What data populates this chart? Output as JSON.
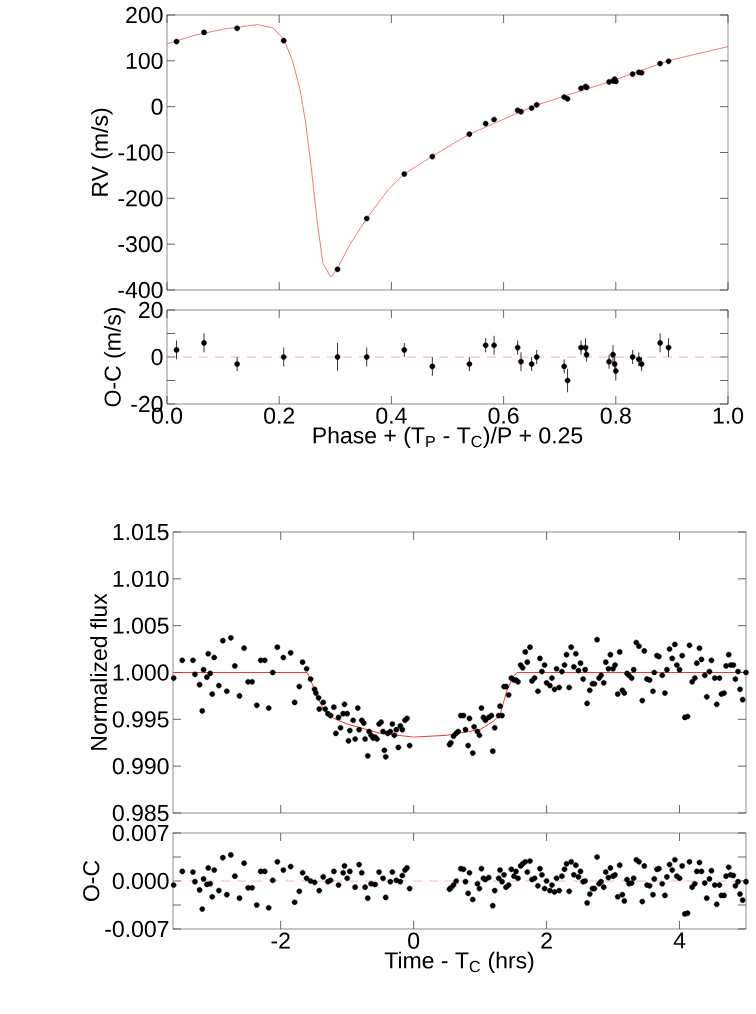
{
  "chart_data": [
    {
      "type": "scatter",
      "ylabel": "RV (m/s)",
      "xlim": [
        0,
        1
      ],
      "ylim": [
        -400,
        200
      ],
      "xticks": [
        0,
        0.2,
        0.4,
        0.6,
        0.8,
        1
      ],
      "yticks": [
        -400,
        -300,
        -200,
        -100,
        0,
        100,
        200
      ],
      "tick_labels": "y",
      "series": [
        {
          "type": "scatter",
          "color": "#000000",
          "marker": "circle",
          "x": [
            0.017,
            0.066,
            0.125,
            0.208,
            0.304,
            0.356,
            0.423,
            0.473,
            0.539,
            0.568,
            0.583,
            0.625,
            0.631,
            0.65,
            0.659,
            0.708,
            0.714,
            0.738,
            0.746,
            0.748,
            0.788,
            0.795,
            0.798,
            0.8,
            0.83,
            0.841,
            0.846,
            0.879,
            0.894
          ],
          "values": [
            142,
            162,
            171,
            144,
            -355,
            -244,
            -147,
            -109,
            -60,
            -37,
            -28,
            -8,
            -11,
            -3,
            4,
            21,
            17,
            40,
            44,
            42,
            54,
            56,
            60,
            55,
            71,
            75,
            74,
            94,
            99
          ]
        },
        {
          "type": "line",
          "color": "#f26b6b",
          "x": [
            0,
            0.05,
            0.1,
            0.161,
            0.189,
            0.208,
            0.223,
            0.237,
            0.247,
            0.257,
            0.268,
            0.278,
            0.292,
            0.305,
            0.326,
            0.356,
            0.395,
            0.423,
            0.473,
            0.539,
            0.655,
            0.793,
            0.896,
            1.0
          ],
          "values": [
            137,
            156,
            169,
            179,
            172,
            147,
            103,
            38,
            -34,
            -131,
            -253,
            -342,
            -372,
            -350,
            -301,
            -244,
            -180,
            -147,
            -108,
            -60,
            2,
            56,
            101,
            131
          ]
        }
      ]
    },
    {
      "type": "scatter",
      "xlabel": "Phase + (T$_{P}$ - T$_{C}$)/P + 0.25",
      "ylabel": "O-C (m/s)",
      "xlim": [
        0,
        1
      ],
      "ylim": [
        -20,
        20
      ],
      "xticks": [
        {
          "value": 0,
          "label": "0.0"
        },
        0.2,
        0.4,
        0.6,
        0.8,
        {
          "value": 1,
          "label": "1.0"
        }
      ],
      "yticks": [
        -20,
        {
          "value": -10,
          "label": null
        },
        0,
        {
          "value": 10,
          "label": null
        },
        20
      ],
      "ref_lines": [
        {
          "axis": "y",
          "value": 0,
          "color": "#f4a3a3",
          "line_style": "dashed"
        }
      ],
      "series": [
        {
          "type": "scatter",
          "color": "#000000",
          "marker": "circle",
          "x": [
            0.017,
            0.066,
            0.125,
            0.208,
            0.304,
            0.356,
            0.423,
            0.473,
            0.539,
            0.568,
            0.583,
            0.625,
            0.631,
            0.65,
            0.659,
            0.708,
            0.714,
            0.738,
            0.746,
            0.748,
            0.788,
            0.795,
            0.798,
            0.8,
            0.83,
            0.841,
            0.846,
            0.879,
            0.894
          ],
          "values": [
            3,
            6,
            -3,
            0,
            0,
            0,
            3,
            -4,
            -3,
            5,
            5,
            4,
            -2,
            -3,
            0,
            -4,
            -10,
            4,
            4,
            1,
            -2,
            1,
            -3,
            -6,
            0,
            -1,
            -3,
            6,
            4
          ],
          "errors": [
            4,
            4,
            3,
            4,
            6,
            4,
            3,
            4,
            3,
            3,
            4,
            3,
            4,
            3,
            3,
            3,
            5,
            3,
            4,
            3,
            3,
            4,
            3,
            4,
            3,
            3,
            3,
            4,
            4
          ]
        }
      ]
    },
    {
      "type": "scatter",
      "ylabel": "Normalized flux",
      "xlim": [
        -3.62,
        5.0
      ],
      "ylim": [
        0.985,
        1.015
      ],
      "xticks": [
        -2,
        0,
        2,
        4
      ],
      "yticks": [
        0.985,
        {
          "value": 0.99,
          "label": "0.990"
        },
        0.995,
        {
          "value": 1.0,
          "label": "1.000"
        },
        1.005,
        {
          "value": 1.01,
          "label": "1.010"
        },
        1.015
      ],
      "tick_labels": "y",
      "series": [
        {
          "type": "scatter",
          "color": "#000000",
          "marker": "circle",
          "x": [
            -3.61,
            -3.48,
            -3.32,
            -3.29,
            -3.22,
            -3.18,
            -3.16,
            -3.11,
            -3.09,
            -3.06,
            -3.03,
            -3.0,
            -2.93,
            -2.87,
            -2.81,
            -2.75,
            -2.69,
            -2.62,
            -2.55,
            -2.49,
            -2.43,
            -2.36,
            -2.3,
            -2.24,
            -2.18,
            -2.12,
            -2.05,
            -1.96,
            -1.85,
            -1.79,
            -1.72,
            -1.67,
            -1.61,
            -1.55,
            -1.49,
            -1.47,
            -1.43,
            -1.42,
            -1.36,
            -1.33,
            -1.29,
            -1.25,
            -1.2,
            -1.17,
            -1.13,
            -1.1,
            -1.06,
            -1.04,
            -1.0,
            -0.98,
            -0.96,
            -0.91,
            -0.88,
            -0.84,
            -0.82,
            -0.78,
            -0.75,
            -0.73,
            -0.69,
            -0.67,
            -0.64,
            -0.61,
            -0.58,
            -0.55,
            -0.52,
            -0.49,
            -0.46,
            -0.44,
            -0.42,
            -0.39,
            -0.35,
            -0.32,
            -0.29,
            -0.26,
            -0.23,
            -0.2,
            -0.17,
            -0.13,
            -0.1,
            -0.06,
            0.54,
            0.56,
            0.6,
            0.64,
            0.67,
            0.71,
            0.75,
            0.78,
            0.82,
            0.84,
            0.89,
            0.91,
            0.96,
            0.99,
            1.02,
            1.05,
            1.08,
            1.13,
            1.17,
            1.19,
            1.22,
            1.28,
            1.3,
            1.33,
            1.36,
            1.39,
            1.43,
            1.47,
            1.51,
            1.54,
            1.57,
            1.61,
            1.64,
            1.68,
            1.71,
            1.75,
            1.78,
            1.82,
            1.87,
            1.9,
            1.93,
            1.97,
            2.0,
            2.05,
            2.08,
            2.12,
            2.15,
            2.19,
            2.23,
            2.27,
            2.3,
            2.34,
            2.37,
            2.41,
            2.44,
            2.48,
            2.51,
            2.55,
            2.58,
            2.61,
            2.65,
            2.69,
            2.72,
            2.76,
            2.79,
            2.82,
            2.86,
            2.89,
            2.93,
            2.96,
            3.0,
            3.03,
            3.07,
            3.1,
            3.14,
            3.17,
            3.21,
            3.24,
            3.28,
            3.31,
            3.35,
            3.39,
            3.44,
            3.47,
            3.51,
            3.55,
            3.6,
            3.62,
            3.66,
            3.69,
            3.74,
            3.78,
            3.81,
            3.85,
            3.89,
            3.93,
            3.96,
            4.0,
            4.04,
            4.08,
            4.12,
            4.15,
            4.19,
            4.23,
            4.26,
            4.3,
            4.33,
            4.38,
            4.41,
            4.45,
            4.48,
            4.53,
            4.56,
            4.6,
            4.63,
            4.67,
            4.7,
            4.74,
            4.77,
            4.81,
            4.84,
            4.88,
            4.91,
            4.95,
            5.0
          ],
          "values": [
            0.9994,
            1.0013,
            1.0013,
            0.9998,
            0.9987,
            0.9959,
            1.0003,
            0.9995,
            1.002,
            0.9999,
            0.9977,
            1.0016,
            0.9986,
            1.0034,
            0.998,
            1.0037,
            1.0007,
            0.9975,
            1.0026,
            0.999,
            0.999,
            0.9965,
            1.0013,
            1.0013,
            0.9962,
            1.0,
            1.0027,
            1.0016,
            1.0021,
            0.9968,
            0.9985,
            1.0011,
            1.0004,
            0.9993,
            0.9982,
            0.9978,
            0.9973,
            0.9961,
            0.9968,
            0.9961,
            0.9956,
            0.9954,
            0.9963,
            0.9935,
            0.9952,
            0.9941,
            0.9956,
            0.9966,
            0.9956,
            0.9927,
            0.9938,
            0.9949,
            0.9929,
            0.9962,
            0.9939,
            0.9949,
            0.9946,
            0.9929,
            0.9911,
            0.9937,
            0.9933,
            0.993,
            0.9931,
            0.9929,
            0.9945,
            0.9947,
            0.9937,
            0.9917,
            0.991,
            0.9935,
            0.9937,
            0.9945,
            0.9933,
            0.9939,
            0.992,
            0.9943,
            0.9939,
            0.9949,
            0.9951,
            0.9922,
            0.9923,
            0.9925,
            0.9932,
            0.9935,
            0.9937,
            0.9954,
            0.9954,
            0.9939,
            0.9922,
            0.9951,
            0.9914,
            0.9942,
            0.9937,
            0.9933,
            0.9962,
            0.9952,
            0.9949,
            0.9952,
            0.9954,
            0.9916,
            0.9941,
            0.9954,
            0.9964,
            0.9954,
            0.9985,
            0.9985,
            0.9976,
            0.9994,
            0.9992,
            0.9992,
            0.999,
            1.0008,
            1.0005,
            1.0022,
            1.0011,
            1.0027,
            0.9991,
            0.9994,
            0.998,
            1.0015,
            1.0001,
            1.0008,
            0.9989,
            0.9986,
            0.9994,
            0.9982,
            1.0004,
            0.9984,
            1.0001,
            1.0008,
            1.0019,
            0.9984,
            1.0027,
            1.0006,
            1.002,
            1.0002,
            1.001,
            0.9993,
            1.0003,
            0.9967,
            0.9981,
            0.9988,
            0.9988,
            1.0035,
            0.9994,
            0.9997,
            0.9989,
            1.0011,
            1.0004,
            1.0019,
            1.0004,
            1.0008,
            0.9977,
            1.0022,
            0.9981,
            0.9978,
            0.9999,
            0.9997,
            0.9994,
            1.0003,
            1.0032,
            1.0028,
            0.997,
            1.0023,
            0.9993,
            0.9992,
            0.998,
            1.0,
            1.0018,
            1.0017,
            0.9997,
            0.9978,
            1.0003,
            1.0025,
            1.0015,
            1.003,
            1.0008,
            1.0003,
            1.0018,
            0.9952,
            0.9953,
            1.0029,
            0.999,
            0.9994,
            1.001,
            1.0026,
            1.0014,
            0.9997,
            0.9974,
            1.0001,
            1.0013,
            0.9994,
            0.9966,
            0.9994,
            0.9977,
            0.9978,
            1.0007,
            1.0019,
            1.0008,
            1.0008,
            0.9993,
            1.0001,
            0.9982,
            0.9971,
            1.0
          ]
        },
        {
          "type": "line",
          "color": "#e8231f",
          "x": [
            -3.62,
            -1.6,
            -1.55,
            -1.45,
            -1.35,
            -1.2,
            -1.0,
            -0.5,
            0,
            0.5,
            1.0,
            1.2,
            1.3,
            1.4,
            1.5,
            1.56,
            5.0
          ],
          "values": [
            1.0,
            1.0,
            0.9992,
            0.9974,
            0.996,
            0.9951,
            0.9945,
            0.9935,
            0.9931,
            0.9933,
            0.9939,
            0.9948,
            0.9955,
            0.998,
            0.9996,
            1.0,
            1.0
          ]
        }
      ]
    },
    {
      "type": "scatter",
      "xlabel": "Time - T$_{C}$ (hrs)",
      "ylabel": "O-C",
      "xlim": [
        -3.62,
        5.0
      ],
      "ylim": [
        -0.007,
        0.007
      ],
      "xticks": [
        -2,
        0,
        2,
        4
      ],
      "yticks": [
        -0.007,
        {
          "value": -0.0035,
          "label": null
        },
        {
          "value": 0,
          "label": "0.000"
        },
        {
          "value": 0.0035,
          "label": null
        },
        0.007
      ],
      "ref_lines": [
        {
          "axis": "y",
          "value": 0,
          "color": "#f4a3a3",
          "line_style": "dashed"
        }
      ],
      "series": [
        {
          "type": "scatter",
          "color": "#000000",
          "marker": "circle",
          "x": [
            -3.61,
            -3.48,
            -3.32,
            -3.29,
            -3.22,
            -3.18,
            -3.16,
            -3.11,
            -3.09,
            -3.06,
            -3.03,
            -3.0,
            -2.93,
            -2.87,
            -2.81,
            -2.75,
            -2.69,
            -2.62,
            -2.55,
            -2.49,
            -2.43,
            -2.36,
            -2.3,
            -2.24,
            -2.18,
            -2.12,
            -2.05,
            -1.96,
            -1.85,
            -1.79,
            -1.72,
            -1.67,
            -1.61,
            -1.55,
            -1.49,
            -1.42,
            -1.36,
            -1.29,
            -1.25,
            -1.2,
            -1.13,
            -1.06,
            -1.04,
            -1.0,
            -0.96,
            -0.88,
            -0.82,
            -0.78,
            -0.73,
            -0.69,
            -0.64,
            -0.58,
            -0.52,
            -0.46,
            -0.42,
            -0.35,
            -0.32,
            -0.26,
            -0.2,
            -0.17,
            -0.13,
            -0.1,
            -0.06,
            0.54,
            0.56,
            0.6,
            0.64,
            0.71,
            0.75,
            0.78,
            0.82,
            0.84,
            0.89,
            0.96,
            0.99,
            1.02,
            1.05,
            1.08,
            1.13,
            1.19,
            1.22,
            1.28,
            1.3,
            1.33,
            1.36,
            1.39,
            1.43,
            1.47,
            1.51,
            1.54,
            1.57,
            1.61,
            1.64,
            1.68,
            1.71,
            1.75,
            1.78,
            1.82,
            1.87,
            1.9,
            1.93,
            1.97,
            2.0,
            2.05,
            2.08,
            2.12,
            2.15,
            2.19,
            2.23,
            2.27,
            2.3,
            2.34,
            2.37,
            2.41,
            2.44,
            2.48,
            2.51,
            2.55,
            2.58,
            2.61,
            2.65,
            2.69,
            2.72,
            2.76,
            2.79,
            2.82,
            2.86,
            2.89,
            2.93,
            2.96,
            3.0,
            3.03,
            3.07,
            3.1,
            3.14,
            3.17,
            3.21,
            3.24,
            3.28,
            3.31,
            3.35,
            3.39,
            3.44,
            3.47,
            3.51,
            3.55,
            3.6,
            3.62,
            3.66,
            3.69,
            3.74,
            3.78,
            3.81,
            3.85,
            3.89,
            3.93,
            3.96,
            4.0,
            4.04,
            4.08,
            4.12,
            4.15,
            4.19,
            4.23,
            4.26,
            4.3,
            4.33,
            4.38,
            4.41,
            4.45,
            4.48,
            4.53,
            4.56,
            4.6,
            4.63,
            4.67,
            4.7,
            4.74,
            4.77,
            4.81,
            4.84,
            4.88,
            4.91,
            4.95,
            5.0
          ],
          "values": [
            -0.0006,
            0.0014,
            0.0013,
            -0.0001,
            -0.0013,
            -0.0041,
            0.0003,
            -0.0005,
            0.0019,
            -0.0004,
            -0.0023,
            0.0016,
            -0.0014,
            0.0034,
            -0.002,
            0.0038,
            0.0007,
            -0.0025,
            0.0026,
            -0.001,
            -0.001,
            -0.0035,
            0.0014,
            0.0014,
            -0.0039,
            0.0001,
            0.0028,
            0.0016,
            0.0021,
            -0.0031,
            -0.0015,
            0.0012,
            0.0004,
            0.0,
            -0.0002,
            -0.0014,
            0.0006,
            -0.0001,
            0.0001,
            0.0014,
            -0.0006,
            0.0012,
            0.0022,
            0.0004,
            0.0014,
            -0.0009,
            0.0024,
            0.0012,
            -0.0009,
            -0.0025,
            -0.0004,
            -0.0005,
            0.0013,
            0.0004,
            -0.0024,
            -0.0001,
            0.0013,
            0.0001,
            -0.0001,
            0.0008,
            0.0016,
            0.0019,
            -0.0011,
            -0.0012,
            -0.001,
            -0.0006,
            0.0,
            0.0018,
            0.0017,
            -0.0001,
            -0.0018,
            0.0012,
            -0.0027,
            -0.0004,
            -0.0011,
            0.0018,
            0.0004,
            0.0002,
            0.0005,
            -0.0036,
            -0.0014,
            0.0004,
            0.0016,
            -0.0001,
            0.0009,
            -0.0009,
            -0.0006,
            0.0017,
            0.0007,
            0.0014,
            0.0004,
            0.0022,
            0.0025,
            0.0028,
            0.0013,
            0.0029,
            0.0002,
            0.0004,
            -0.0007,
            0.0018,
            0.0009,
            -0.0011,
            0.0,
            -0.0014,
            -0.0006,
            -0.0016,
            0.0004,
            -0.0014,
            0.0007,
            0.0017,
            0.0025,
            -0.0015,
            0.0028,
            0.0009,
            0.0023,
            0.0006,
            0.0014,
            -0.0001,
            0.0,
            -0.0032,
            -0.0019,
            -0.0011,
            -0.0011,
            0.0035,
            -0.0004,
            -0.0001,
            -0.0009,
            0.0013,
            0.0005,
            0.0019,
            0.0007,
            0.0009,
            -0.0023,
            0.0023,
            -0.002,
            -0.0029,
            0.0002,
            -0.0004,
            -0.0003,
            0.0004,
            0.0031,
            0.0028,
            -0.003,
            0.0022,
            -0.0006,
            -0.0007,
            -0.002,
            0.0003,
            0.0017,
            0.0018,
            -0.0004,
            -0.0021,
            0.0006,
            0.0024,
            0.0016,
            0.0031,
            0.0007,
            0.0004,
            0.0022,
            -0.0048,
            -0.0047,
            0.0028,
            -0.0009,
            -0.0004,
            0.0014,
            0.0027,
            0.0014,
            -0.0003,
            -0.0025,
            0.0003,
            0.0015,
            -0.0006,
            -0.0034,
            -0.0006,
            -0.0021,
            -0.0021,
            0.0007,
            0.002,
            0.0009,
            0.0008,
            -0.0007,
            -0.0001,
            -0.0019,
            -0.0028,
            -0.0001
          ]
        }
      ]
    }
  ]
}
